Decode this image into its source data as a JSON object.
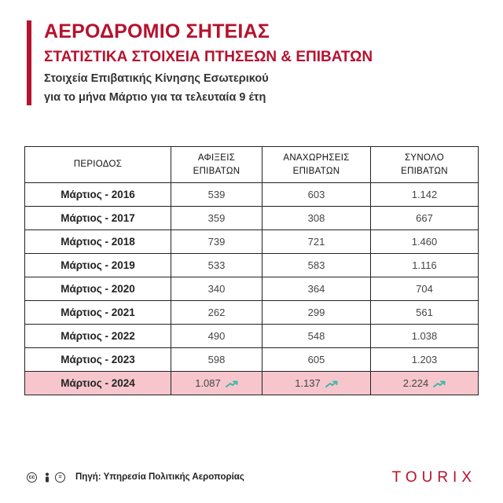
{
  "header": {
    "title": "ΑΕΡΟΔΡΟΜΙΟ ΣΗΤΕΙΑΣ",
    "subtitle": "ΣΤΑΤΙΣΤΙΚΑ ΣΤΟΙΧΕΙΑ ΠΤΗΣΕΩΝ & ΕΠΙΒΑΤΩΝ",
    "description_line1": "Στοιχεία Επιβατικής Κίνησης Εσωτερικού",
    "description_line2": "για το μήνα Μάρτιο για τα τελευταία 9 έτη"
  },
  "table": {
    "headers": [
      [
        "ΠΕΡΙΟΔΟΣ"
      ],
      [
        "ΑΦΙΞΕΙΣ",
        "ΕΠΙΒΑΤΩΝ"
      ],
      [
        "ΑΝΑΧΩΡΗΣΕΙΣ",
        "ΕΠΙΒΑΤΩΝ"
      ],
      [
        "ΣΥΝΟΛΟ",
        "ΕΠΙΒΑΤΩΝ"
      ]
    ],
    "rows": [
      {
        "period": "Μάρτιος - 2016",
        "arrivals": "539",
        "departures": "603",
        "total": "1.142"
      },
      {
        "period": "Μάρτιος - 2017",
        "arrivals": "359",
        "departures": "308",
        "total": "667"
      },
      {
        "period": "Μάρτιος - 2018",
        "arrivals": "739",
        "departures": "721",
        "total": "1.460"
      },
      {
        "period": "Μάρτιος - 2019",
        "arrivals": "533",
        "departures": "583",
        "total": "1.116"
      },
      {
        "period": "Μάρτιος - 2020",
        "arrivals": "340",
        "departures": "364",
        "total": "704"
      },
      {
        "period": "Μάρτιος - 2021",
        "arrivals": "262",
        "departures": "299",
        "total": "561"
      },
      {
        "period": "Μάρτιος - 2022",
        "arrivals": "490",
        "departures": "548",
        "total": "1.038"
      },
      {
        "period": "Μάρτιος - 2023",
        "arrivals": "598",
        "departures": "605",
        "total": "1.203"
      },
      {
        "period": "Μάρτιος - 2024",
        "arrivals": "1.087",
        "departures": "1.137",
        "total": "2.224",
        "highlight": true,
        "trend_icon": "trend-up-icon"
      }
    ]
  },
  "footer": {
    "license_icons": [
      "cc-icon",
      "by-person-icon",
      "nc-equal-icon"
    ],
    "source": "Πηγή: Υπηρεσία Πολιτικής Αεροπορίας",
    "brand": "TOURIX"
  },
  "colors": {
    "accent": "#b5132e",
    "highlight_row": "#f7c6cd",
    "trend_arrow": "#3fb8a3"
  }
}
